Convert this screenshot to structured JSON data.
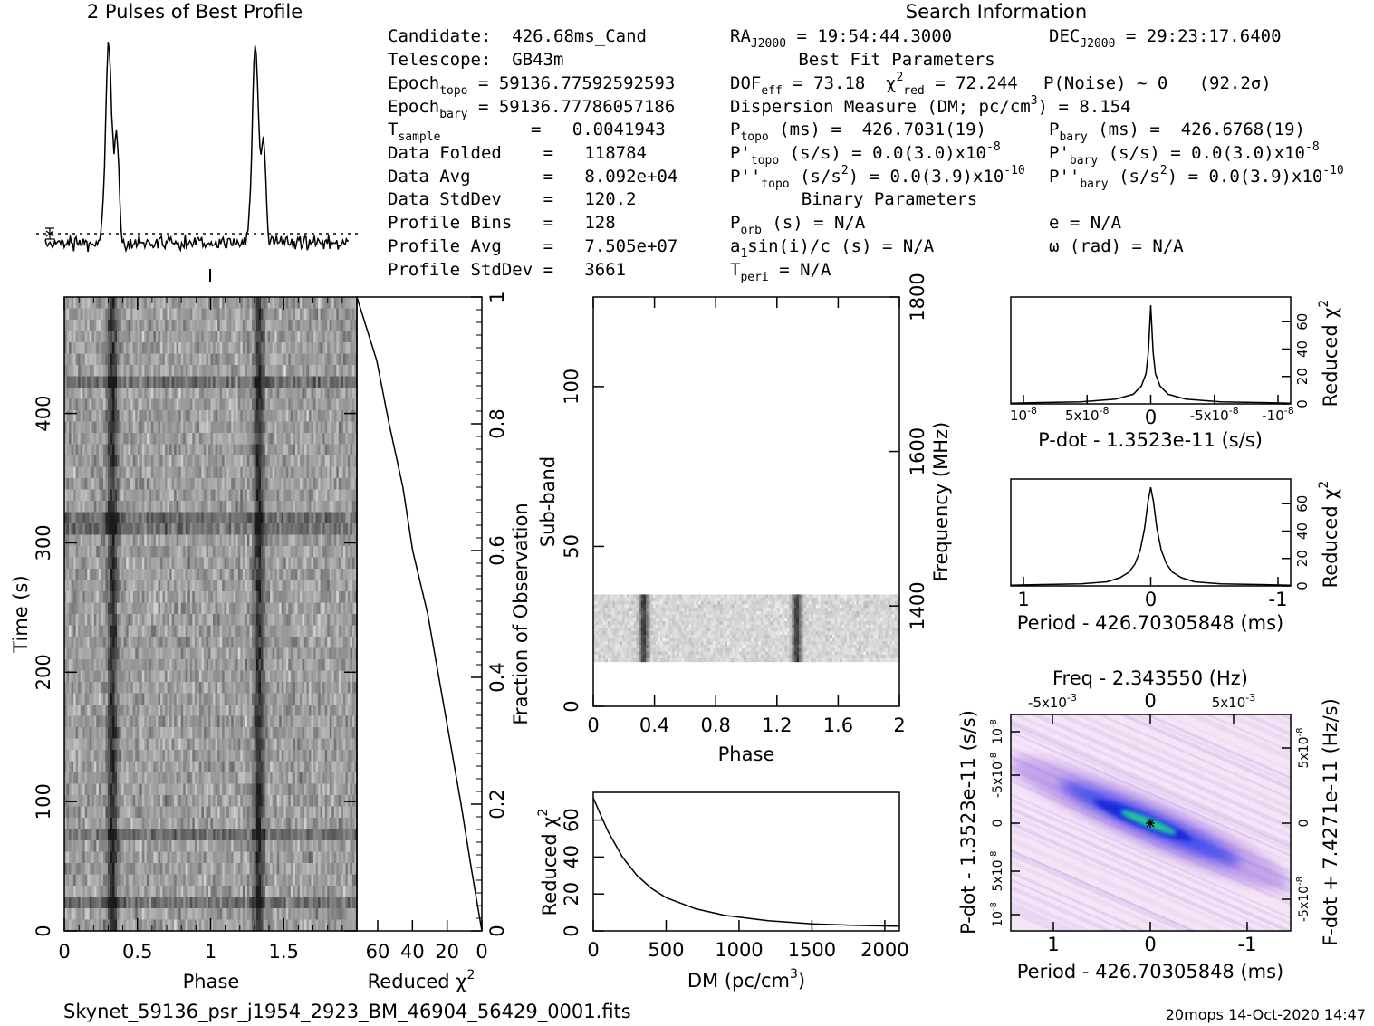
{
  "header": {
    "profile_title": "2 Pulses of Best Profile",
    "search_title": "Search Information",
    "best_fit_title": "Best Fit Parameters",
    "binary_title": "Binary Parameters"
  },
  "info": {
    "candidate": "Candidate:  426.68ms_Cand",
    "telescope": "Telescope:  GB43m",
    "epoch_topo_l": "Epoch",
    "epoch_topo_s": "topo",
    "epoch_topo_v": "= 59136.77592592593",
    "epoch_bary_l": "Epoch",
    "epoch_bary_s": "bary",
    "epoch_bary_v": "= 59136.77786057186",
    "tsample_l": "T",
    "tsample_s": "sample",
    "tsample_v": "=   0.0041943",
    "data_folded": "Data Folded    =   118784",
    "data_avg": "Data Avg       =   8.092e+04",
    "data_std": "Data StdDev    =   120.2",
    "prof_bins": "Profile Bins   =   128",
    "prof_avg": "Profile Avg    =   7.505e+07",
    "prof_std": "Profile StdDev =   3661"
  },
  "search": {
    "ra_l": "RA",
    "ra_s": "J2000",
    "ra_v": "= 19:54:44.3000",
    "dec_l": "DEC",
    "dec_s": "J2000",
    "dec_v": "= 29:23:17.6400",
    "dof_l": "DOF",
    "dof_s": "eff",
    "dof_v": "= 73.18",
    "chi_l": "χ",
    "chi_sup": "2",
    "chi_s": "red",
    "chi_v": "= 72.244",
    "pnoise": "P(Noise) ~ 0   (92.2σ)",
    "dm_l": "Dispersion Measure (DM; pc/cm",
    "dm_sup": "3",
    "dm_v": ") = 8.154",
    "ptopo_l": "P",
    "ptopo_s": "topo",
    "ptopo_v": "(ms) =  426.7031(19)",
    "pbary_l": "P",
    "pbary_s": "bary",
    "pbary_v": "(ms) =  426.6768(19)",
    "pdtopo_l": "P'",
    "pdtopo_s": "topo",
    "pdtopo_v": "(s/s) = 0.0(3.0)x10",
    "pdtopo_e": "-8",
    "pdbary_l": "P'",
    "pdbary_s": "bary",
    "pdbary_v": "(s/s) = 0.0(3.0)x10",
    "pdbary_e": "-8",
    "pddtopo_l": "P''",
    "pddtopo_s": "topo",
    "pddtopo_v": "(s/s",
    "pddtopo_v2": ") = 0.0(3.9)x10",
    "pddtopo_e": "-10",
    "pddbary_l": "P''",
    "pddbary_s": "bary",
    "pddbary_v": "(s/s",
    "pddbary_v2": ") = 0.0(3.9)x10",
    "pddbary_e": "-10",
    "sq": "2",
    "porb_l": "P",
    "porb_s": "orb",
    "porb_v": "(s) = N/A",
    "ecc": "e = N/A",
    "a1": "a",
    "a1_s": "1",
    "a1_v": "sin(i)/c (s) = N/A",
    "omega": "ω (rad) = N/A",
    "tperi_l": "T",
    "tperi_s": "peri",
    "tperi_v": "= N/A"
  },
  "footer": {
    "filename": "Skynet_59136_psr_j1954_2923_BM_46904_56429_0001.fits",
    "stamp": "20mops 14-Oct-2020 14:47"
  },
  "colors": {
    "ink": "#000000",
    "pp_bg": "#f3dcf3",
    "pp_mid": "#2233dd",
    "pp_core": "#22dd88"
  },
  "chart_data": [
    {
      "type": "line",
      "id": "profile",
      "title": "2 Pulses of Best Profile",
      "x": "phase 0-2",
      "series": [
        {
          "peaks_at_phase": [
            0.33,
            1.33
          ],
          "baseline_level": "≈ mean",
          "peak_height": "≈ 14× noise"
        }
      ]
    },
    {
      "type": "heatmap",
      "id": "time_phase",
      "xlabel": "Phase",
      "ylabel": "Time (s)",
      "xticks": [
        "0",
        "0.5",
        "1",
        "1.5"
      ],
      "yticks": [
        "0",
        "100",
        "200",
        "300",
        "400"
      ],
      "xlim": [
        0,
        2
      ],
      "ylim": [
        0,
        490
      ],
      "pulse_phase": [
        0.33,
        1.33
      ]
    },
    {
      "type": "line",
      "id": "time_chi2",
      "xlabel": "Reduced χ",
      "xlabel_sup": "2",
      "ylabel": "Fraction of Observation",
      "xticks": [
        "60",
        "40",
        "20",
        "0"
      ],
      "yticks": [
        "0",
        "0.2",
        "0.4",
        "0.6",
        "0.8",
        "1"
      ],
      "xlim": [
        72,
        0
      ],
      "ylim": [
        0,
        1
      ],
      "x_at_y": [
        [
          0,
          0
        ],
        [
          0.1,
          6
        ],
        [
          0.2,
          12
        ],
        [
          0.3,
          18
        ],
        [
          0.4,
          25
        ],
        [
          0.5,
          32
        ],
        [
          0.6,
          39
        ],
        [
          0.7,
          46
        ],
        [
          0.8,
          53
        ],
        [
          0.9,
          61
        ],
        [
          1.0,
          72
        ]
      ]
    },
    {
      "type": "heatmap",
      "id": "subband_phase",
      "xlabel": "Phase",
      "ylabel": "Sub-band",
      "y2label": "Frequency (MHz)",
      "xticks": [
        "0",
        "0.4",
        "0.8",
        "1.2",
        "1.6",
        "2"
      ],
      "yticks": [
        "0",
        "50",
        "100"
      ],
      "y2ticks": [
        "1400",
        "1600",
        "1800"
      ],
      "xlim": [
        0,
        2
      ],
      "ylim": [
        0,
        128
      ],
      "data_subbands": [
        14,
        35
      ],
      "pulse_phase": [
        0.33,
        1.33
      ]
    },
    {
      "type": "line",
      "id": "dm_chi2",
      "xlabel": "DM (pc/cm",
      "xlabel_sup": "3",
      "xlabel_end": ")",
      "ylabel": "Reduced χ",
      "ylabel_sup": "2",
      "xticks": [
        "0",
        "500",
        "1000",
        "1500",
        "2000"
      ],
      "yticks": [
        "0",
        "20",
        "40",
        "60"
      ],
      "xlim": [
        0,
        2100
      ],
      "ylim": [
        0,
        75
      ],
      "x": [
        0,
        50,
        100,
        200,
        300,
        400,
        500,
        700,
        900,
        1200,
        1500,
        1800,
        2100
      ],
      "y": [
        72,
        63,
        54,
        40,
        30,
        23,
        18,
        12,
        8.5,
        5.5,
        3.8,
        3.0,
        2.5
      ]
    },
    {
      "type": "line",
      "id": "pdot_chi2",
      "xlabel": "P-dot - 1.3523e-11 (s/s)",
      "ylabel": "Reduced χ",
      "ylabel_sup": "2",
      "xticks": [
        "10",
        "5x10",
        "0",
        "-5x10",
        "-10"
      ],
      "xtick_exp": "-8",
      "yticks": [
        "0",
        "20",
        "40",
        "60"
      ],
      "xlim": [
        1.2e-07,
        -1.2e-07
      ],
      "ylim": [
        0,
        78
      ],
      "x": [
        1.2e-07,
        6e-08,
        3e-08,
        1.5e-08,
        8e-09,
        4e-09,
        2e-09,
        0,
        -2e-09,
        -4e-09,
        -8e-09,
        -1.5e-08,
        -3e-08,
        -6e-08,
        -1.2e-07
      ],
      "y": [
        0.5,
        1.5,
        3.5,
        7,
        13,
        22,
        38,
        72,
        38,
        22,
        13,
        7,
        3.5,
        1.5,
        0.5
      ]
    },
    {
      "type": "line",
      "id": "period_chi2",
      "xlabel": "Period - 426.70305848 (ms)",
      "ylabel": "Reduced χ",
      "ylabel_sup": "2",
      "xticks": [
        "1",
        "0",
        "-1"
      ],
      "yticks": [
        "0",
        "20",
        "40",
        "60"
      ],
      "xlim": [
        1.6,
        -1.6
      ],
      "ylim": [
        0,
        78
      ],
      "x": [
        1.6,
        0.8,
        0.5,
        0.35,
        0.25,
        0.18,
        0.12,
        0.07,
        0.03,
        0,
        -0.03,
        -0.07,
        -0.12,
        -0.18,
        -0.25,
        -0.35,
        -0.5,
        -0.8,
        -1.6
      ],
      "y": [
        0.5,
        1.5,
        3,
        6,
        10,
        16,
        26,
        42,
        62,
        72,
        62,
        42,
        26,
        16,
        10,
        6,
        3,
        1.5,
        0.5
      ]
    },
    {
      "type": "heatmap",
      "id": "p_pdot",
      "title": "Freq - 2.343550 (Hz)",
      "xlabel": "Period - 426.70305848 (ms)",
      "ylabel": "P-dot - 1.3523e-11 (s/s)",
      "y2label": "F-dot + 7.4271e-11 (Hz/s)",
      "xticks": [
        "1",
        "0",
        "-1"
      ],
      "x2ticks": [
        "-5x10",
        "0",
        "5x10"
      ],
      "x2tick_exp": "-3",
      "yticks": [
        "10",
        "5x10",
        "0",
        "-5x10",
        "10"
      ],
      "ytick_exp": "-8",
      "y2ticks": [
        "-5x10",
        "0",
        "5x10"
      ],
      "y2tick_exp": "-8",
      "xlim": [
        1.6,
        -1.6
      ],
      "ylim": [
        -1.2e-07,
        1.2e-07
      ],
      "peak": [
        0,
        0
      ]
    }
  ]
}
